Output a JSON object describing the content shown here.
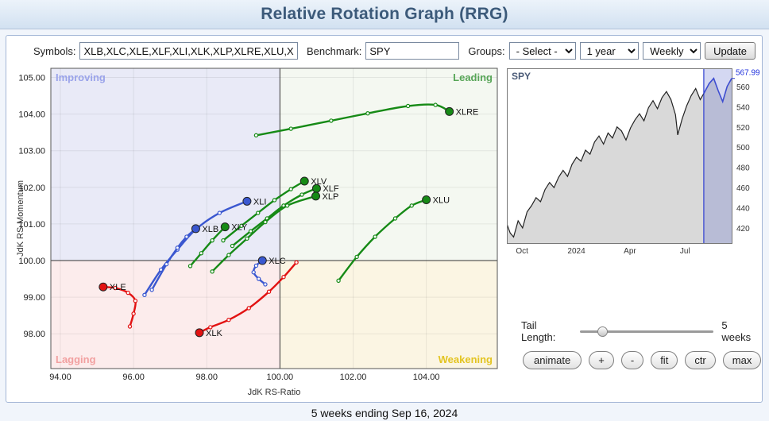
{
  "header": {
    "title": "Relative Rotation Graph (RRG)"
  },
  "toolbar": {
    "symbols_label": "Symbols:",
    "symbols_value": "XLB,XLC,XLE,XLF,XLI,XLK,XLP,XLRE,XLU,XLV,XLY",
    "benchmark_label": "Benchmark:",
    "benchmark_value": "SPY",
    "groups_label": "Groups:",
    "groups_value": "- Select -",
    "period_value": "1 year",
    "frequency_value": "Weekly",
    "update_label": "Update"
  },
  "controls": {
    "tail_length_label": "Tail Length:",
    "tail_length_value": "5 weeks",
    "tail_slider_value": "5",
    "buttons": [
      "animate",
      "+",
      "-",
      "fit",
      "ctr",
      "max"
    ]
  },
  "footer": {
    "caption": "5 weeks ending Sep 16, 2024"
  },
  "chart_data": [
    {
      "type": "line",
      "title": "RRG quadrant chart",
      "xlabel": "JdK RS-Ratio",
      "ylabel": "JdK RS-Momentum",
      "xlim": [
        93.74,
        105.94
      ],
      "ylim": [
        97.05,
        105.25
      ],
      "x_ticks": [
        94,
        96,
        98,
        100,
        102,
        104
      ],
      "y_ticks": [
        98,
        99,
        100,
        101,
        102,
        103,
        104,
        105
      ],
      "center": [
        100,
        100
      ],
      "quadrants": [
        {
          "name": "Improving",
          "color": "#9aa3ea",
          "bg": "#e9eaf7"
        },
        {
          "name": "Leading",
          "color": "#57a557",
          "bg": "#f4f8f1"
        },
        {
          "name": "Lagging",
          "color": "#f2a0a0",
          "bg": "#fcecec"
        },
        {
          "name": "Weakening",
          "color": "#e3c421",
          "bg": "#fbf5e3"
        }
      ],
      "series": [
        {
          "name": "XLRE",
          "color": "#168a16",
          "points": [
            [
              99.35,
              103.42
            ],
            [
              100.3,
              103.6
            ],
            [
              101.4,
              103.82
            ],
            [
              102.4,
              104.02
            ],
            [
              103.5,
              104.22
            ],
            [
              104.25,
              104.25
            ],
            [
              104.63,
              104.07
            ]
          ]
        },
        {
          "name": "XLV",
          "color": "#168a16",
          "points": [
            [
              98.45,
              100.55
            ],
            [
              98.95,
              100.95
            ],
            [
              99.4,
              101.3
            ],
            [
              99.85,
              101.65
            ],
            [
              100.3,
              101.95
            ],
            [
              100.67,
              102.17
            ]
          ]
        },
        {
          "name": "XLF",
          "color": "#168a16",
          "points": [
            [
              98.7,
              100.4
            ],
            [
              99.2,
              100.8
            ],
            [
              99.65,
              101.15
            ],
            [
              100.1,
              101.5
            ],
            [
              100.6,
              101.8
            ],
            [
              101.0,
              101.97
            ]
          ]
        },
        {
          "name": "XLP",
          "color": "#168a16",
          "points": [
            [
              98.15,
              99.7
            ],
            [
              98.6,
              100.15
            ],
            [
              99.1,
              100.6
            ],
            [
              99.6,
              101.05
            ],
            [
              100.2,
              101.5
            ],
            [
              100.98,
              101.76
            ]
          ]
        },
        {
          "name": "XLU",
          "color": "#168a16",
          "points": [
            [
              101.6,
              99.45
            ],
            [
              102.1,
              100.1
            ],
            [
              102.6,
              100.65
            ],
            [
              103.15,
              101.15
            ],
            [
              103.6,
              101.5
            ],
            [
              104.0,
              101.66
            ]
          ]
        },
        {
          "name": "XLY",
          "color": "#168a16",
          "points": [
            [
              97.55,
              99.85
            ],
            [
              97.85,
              100.2
            ],
            [
              98.15,
              100.55
            ],
            [
              98.5,
              100.92
            ]
          ]
        },
        {
          "name": "XLI",
          "color": "#3a57d0",
          "points": [
            [
              96.3,
              99.06
            ],
            [
              96.75,
              99.75
            ],
            [
              97.2,
              100.3
            ],
            [
              97.7,
              100.85
            ],
            [
              98.35,
              101.3
            ],
            [
              99.1,
              101.62
            ]
          ]
        },
        {
          "name": "XLB",
          "color": "#3a57d0",
          "points": [
            [
              96.5,
              99.2
            ],
            [
              96.9,
              99.9
            ],
            [
              97.2,
              100.35
            ],
            [
              97.45,
              100.65
            ],
            [
              97.7,
              100.87
            ]
          ]
        },
        {
          "name": "XLC",
          "color": "#3a57d0",
          "points": [
            [
              99.6,
              99.35
            ],
            [
              99.42,
              99.5
            ],
            [
              99.28,
              99.68
            ],
            [
              99.35,
              99.86
            ],
            [
              99.52,
              100.0
            ]
          ]
        },
        {
          "name": "XLE",
          "color": "#e21212",
          "points": [
            [
              95.9,
              98.2
            ],
            [
              96.0,
              98.55
            ],
            [
              96.05,
              98.9
            ],
            [
              95.85,
              99.12
            ],
            [
              95.5,
              99.25
            ],
            [
              95.17,
              99.28
            ]
          ]
        },
        {
          "name": "XLK",
          "color": "#e21212",
          "points": [
            [
              100.45,
              99.95
            ],
            [
              100.1,
              99.55
            ],
            [
              99.7,
              99.15
            ],
            [
              99.15,
              98.7
            ],
            [
              98.6,
              98.38
            ],
            [
              98.1,
              98.18
            ],
            [
              97.8,
              98.03
            ]
          ]
        }
      ]
    },
    {
      "type": "area",
      "title": "Benchmark price chart",
      "symbol": "SPY",
      "last_price": "567.99",
      "ylim": [
        405,
        578
      ],
      "y_ticks": [
        560,
        540,
        520,
        500,
        480,
        460,
        440,
        420
      ],
      "x_ticks": [
        {
          "label": "Oct",
          "f": 0.04
        },
        {
          "label": "2024",
          "f": 0.27
        },
        {
          "label": "Apr",
          "f": 0.52
        },
        {
          "label": "Jul",
          "f": 0.77
        }
      ],
      "band_start": 0.876,
      "points": [
        [
          0.0,
          424
        ],
        [
          0.015,
          415
        ],
        [
          0.03,
          411
        ],
        [
          0.05,
          427
        ],
        [
          0.07,
          420
        ],
        [
          0.09,
          436
        ],
        [
          0.11,
          442
        ],
        [
          0.13,
          450
        ],
        [
          0.15,
          446
        ],
        [
          0.17,
          458
        ],
        [
          0.19,
          465
        ],
        [
          0.21,
          460
        ],
        [
          0.23,
          470
        ],
        [
          0.25,
          477
        ],
        [
          0.27,
          471
        ],
        [
          0.29,
          483
        ],
        [
          0.31,
          490
        ],
        [
          0.33,
          486
        ],
        [
          0.35,
          497
        ],
        [
          0.37,
          493
        ],
        [
          0.39,
          505
        ],
        [
          0.41,
          511
        ],
        [
          0.43,
          503
        ],
        [
          0.45,
          514
        ],
        [
          0.47,
          509
        ],
        [
          0.49,
          520
        ],
        [
          0.51,
          516
        ],
        [
          0.53,
          507
        ],
        [
          0.55,
          519
        ],
        [
          0.57,
          527
        ],
        [
          0.59,
          533
        ],
        [
          0.61,
          526
        ],
        [
          0.63,
          539
        ],
        [
          0.65,
          546
        ],
        [
          0.67,
          538
        ],
        [
          0.69,
          549
        ],
        [
          0.71,
          555
        ],
        [
          0.73,
          547
        ],
        [
          0.75,
          532
        ],
        [
          0.76,
          512
        ],
        [
          0.78,
          528
        ],
        [
          0.8,
          541
        ],
        [
          0.82,
          551
        ],
        [
          0.84,
          558
        ],
        [
          0.86,
          547
        ],
        [
          0.876,
          553
        ],
        [
          0.9,
          563
        ],
        [
          0.92,
          568
        ],
        [
          0.94,
          556
        ],
        [
          0.96,
          545
        ],
        [
          0.98,
          560
        ],
        [
          1.0,
          568
        ]
      ]
    }
  ]
}
